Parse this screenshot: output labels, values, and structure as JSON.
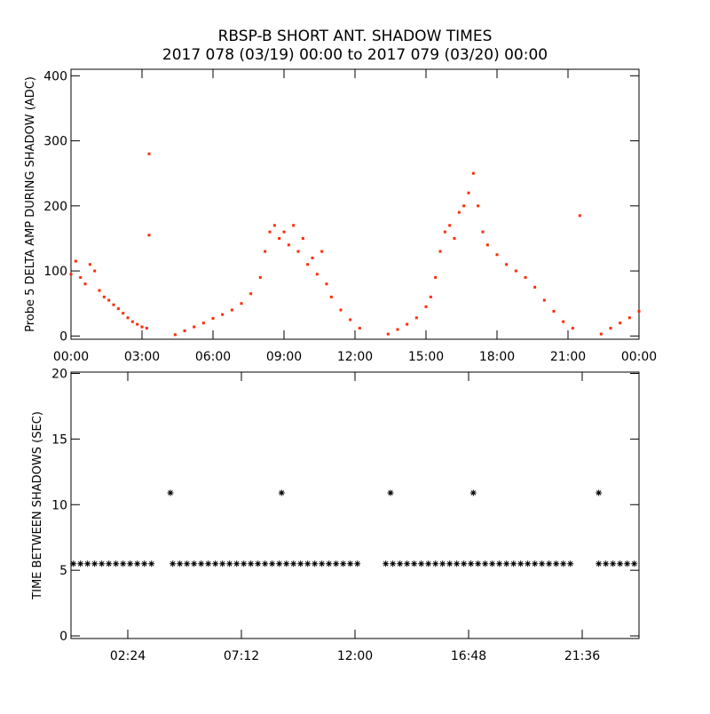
{
  "chart_data": [
    {
      "type": "scatter",
      "title": "RBSP-B SHORT ANT. SHADOW TIMES",
      "subtitle": "2017 078 (03/19) 00:00 to 2017 079 (03/20) 00:00",
      "ylabel": "Probe 5 DELTA AMP DURING SHADOW (ADC)",
      "xlim": [
        0,
        24
      ],
      "ylim": [
        -5,
        410
      ],
      "xticks": [
        {
          "value": 0,
          "label": "00:00"
        },
        {
          "value": 3,
          "label": "03:00"
        },
        {
          "value": 6,
          "label": "06:00"
        },
        {
          "value": 9,
          "label": "09:00"
        },
        {
          "value": 12,
          "label": "12:00"
        },
        {
          "value": 15,
          "label": "15:00"
        },
        {
          "value": 18,
          "label": "18:00"
        },
        {
          "value": 21,
          "label": "21:00"
        },
        {
          "value": 24,
          "label": "00:00"
        }
      ],
      "yticks": [
        0,
        100,
        200,
        300,
        400
      ],
      "series": [
        {
          "color": "#ff2a00",
          "x": [
            0.0,
            0.2,
            0.4,
            0.6,
            0.8,
            1.0,
            1.2,
            1.4,
            1.6,
            1.8,
            2.0,
            2.2,
            2.4,
            2.6,
            2.8,
            3.0,
            3.2,
            3.3,
            3.3,
            4.4,
            4.8,
            5.2,
            5.6,
            6.0,
            6.4,
            6.8,
            7.2,
            7.6,
            8.0,
            8.2,
            8.4,
            8.6,
            8.8,
            9.0,
            9.2,
            9.4,
            9.6,
            9.8,
            10.0,
            10.2,
            10.4,
            10.6,
            10.8,
            11.0,
            11.4,
            11.8,
            12.2,
            13.4,
            13.8,
            14.2,
            14.6,
            15.0,
            15.2,
            15.4,
            15.6,
            15.8,
            16.0,
            16.2,
            16.4,
            16.6,
            16.8,
            17.0,
            17.2,
            17.4,
            17.6,
            18.0,
            18.4,
            18.8,
            19.2,
            19.6,
            20.0,
            20.4,
            20.8,
            21.2,
            21.5,
            22.4,
            22.8,
            23.2,
            23.6,
            24.0
          ],
          "values": [
            95,
            115,
            90,
            80,
            110,
            100,
            70,
            60,
            55,
            48,
            42,
            35,
            28,
            22,
            18,
            14,
            12,
            280,
            155,
            2,
            8,
            14,
            20,
            27,
            33,
            40,
            50,
            65,
            90,
            130,
            160,
            170,
            150,
            160,
            140,
            170,
            130,
            150,
            110,
            120,
            95,
            130,
            80,
            60,
            40,
            25,
            12,
            3,
            10,
            18,
            28,
            45,
            60,
            90,
            130,
            160,
            170,
            150,
            190,
            200,
            220,
            250,
            200,
            160,
            140,
            125,
            110,
            100,
            90,
            75,
            55,
            38,
            22,
            12,
            185,
            3,
            12,
            20,
            28,
            38
          ]
        }
      ]
    },
    {
      "type": "scatter",
      "ylabel": "TIME BETWEEN SHADOWS (SEC)",
      "xlim": [
        0,
        24
      ],
      "ylim": [
        -0.2,
        20.1
      ],
      "xticks": [
        {
          "value": 2.4,
          "label": "02:24"
        },
        {
          "value": 7.2,
          "label": "07:12"
        },
        {
          "value": 12,
          "label": "12:00"
        },
        {
          "value": 16.8,
          "label": "16:48"
        },
        {
          "value": 21.6,
          "label": "21:36"
        }
      ],
      "yticks": [
        0,
        5,
        10,
        15,
        20
      ],
      "series": [
        {
          "color": "#000000",
          "x": [
            0.1,
            0.4,
            0.7,
            1.0,
            1.3,
            1.6,
            1.9,
            2.2,
            2.5,
            2.8,
            3.1,
            3.4,
            4.3,
            4.6,
            4.9,
            5.2,
            5.5,
            5.8,
            6.1,
            6.4,
            6.7,
            7.0,
            7.3,
            7.6,
            7.9,
            8.2,
            8.5,
            8.8,
            9.1,
            9.4,
            9.7,
            10.0,
            10.3,
            10.6,
            10.9,
            11.2,
            11.5,
            11.8,
            12.1,
            13.3,
            13.6,
            13.9,
            14.2,
            14.5,
            14.8,
            15.1,
            15.4,
            15.7,
            16.0,
            16.3,
            16.6,
            16.9,
            17.2,
            17.5,
            17.8,
            18.1,
            18.4,
            18.7,
            19.0,
            19.3,
            19.6,
            19.9,
            20.2,
            20.5,
            20.8,
            21.1,
            22.3,
            22.6,
            22.9,
            23.2,
            23.5,
            23.8
          ],
          "values": [
            5.5,
            5.5,
            5.5,
            5.5,
            5.5,
            5.5,
            5.5,
            5.5,
            5.5,
            5.5,
            5.5,
            5.5,
            5.5,
            5.5,
            5.5,
            5.5,
            5.5,
            5.5,
            5.5,
            5.5,
            5.5,
            5.5,
            5.5,
            5.5,
            5.5,
            5.5,
            5.5,
            5.5,
            5.5,
            5.5,
            5.5,
            5.5,
            5.5,
            5.5,
            5.5,
            5.5,
            5.5,
            5.5,
            5.5,
            5.5,
            5.5,
            5.5,
            5.5,
            5.5,
            5.5,
            5.5,
            5.5,
            5.5,
            5.5,
            5.5,
            5.5,
            5.5,
            5.5,
            5.5,
            5.5,
            5.5,
            5.5,
            5.5,
            5.5,
            5.5,
            5.5,
            5.5,
            5.5,
            5.5,
            5.5,
            5.5,
            5.5,
            5.5,
            5.5,
            5.5,
            5.5,
            5.5
          ]
        },
        {
          "color": "#000000",
          "x": [
            4.2,
            8.9,
            13.5,
            17.0,
            22.3
          ],
          "values": [
            10.9,
            10.9,
            10.9,
            10.9,
            10.9
          ]
        }
      ]
    }
  ]
}
